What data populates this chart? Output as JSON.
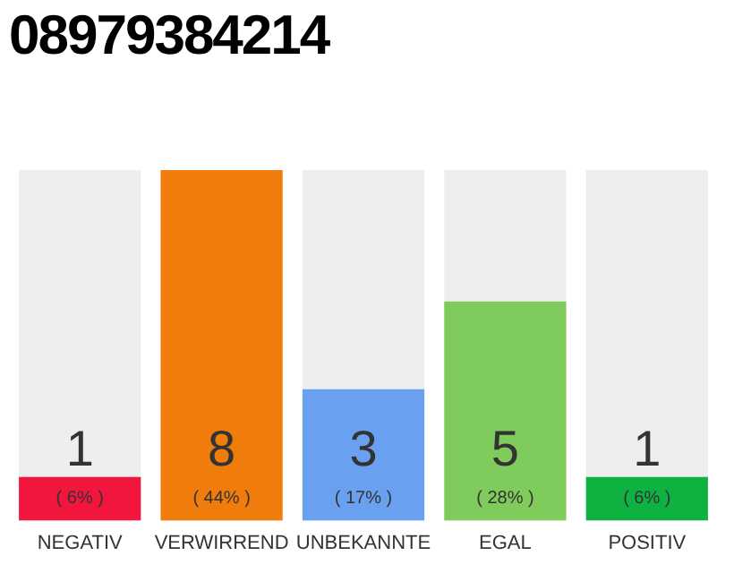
{
  "chart_data": {
    "type": "bar",
    "title": "08979384214",
    "categories": [
      "NEGATIV",
      "VERWIRREND",
      "UNBEKANNTE",
      "EGAL",
      "POSITIV"
    ],
    "values": [
      1,
      8,
      3,
      5,
      1
    ],
    "colors": [
      "#f2163f",
      "#f07d0b",
      "#6aa0f0",
      "#7fcb5c",
      "#0db240"
    ],
    "data_labels": true,
    "annotations": [
      "( 6% )",
      "( 44% )",
      "( 17% )",
      "( 28% )",
      "( 6% )"
    ],
    "grid": false,
    "legend": false
  }
}
